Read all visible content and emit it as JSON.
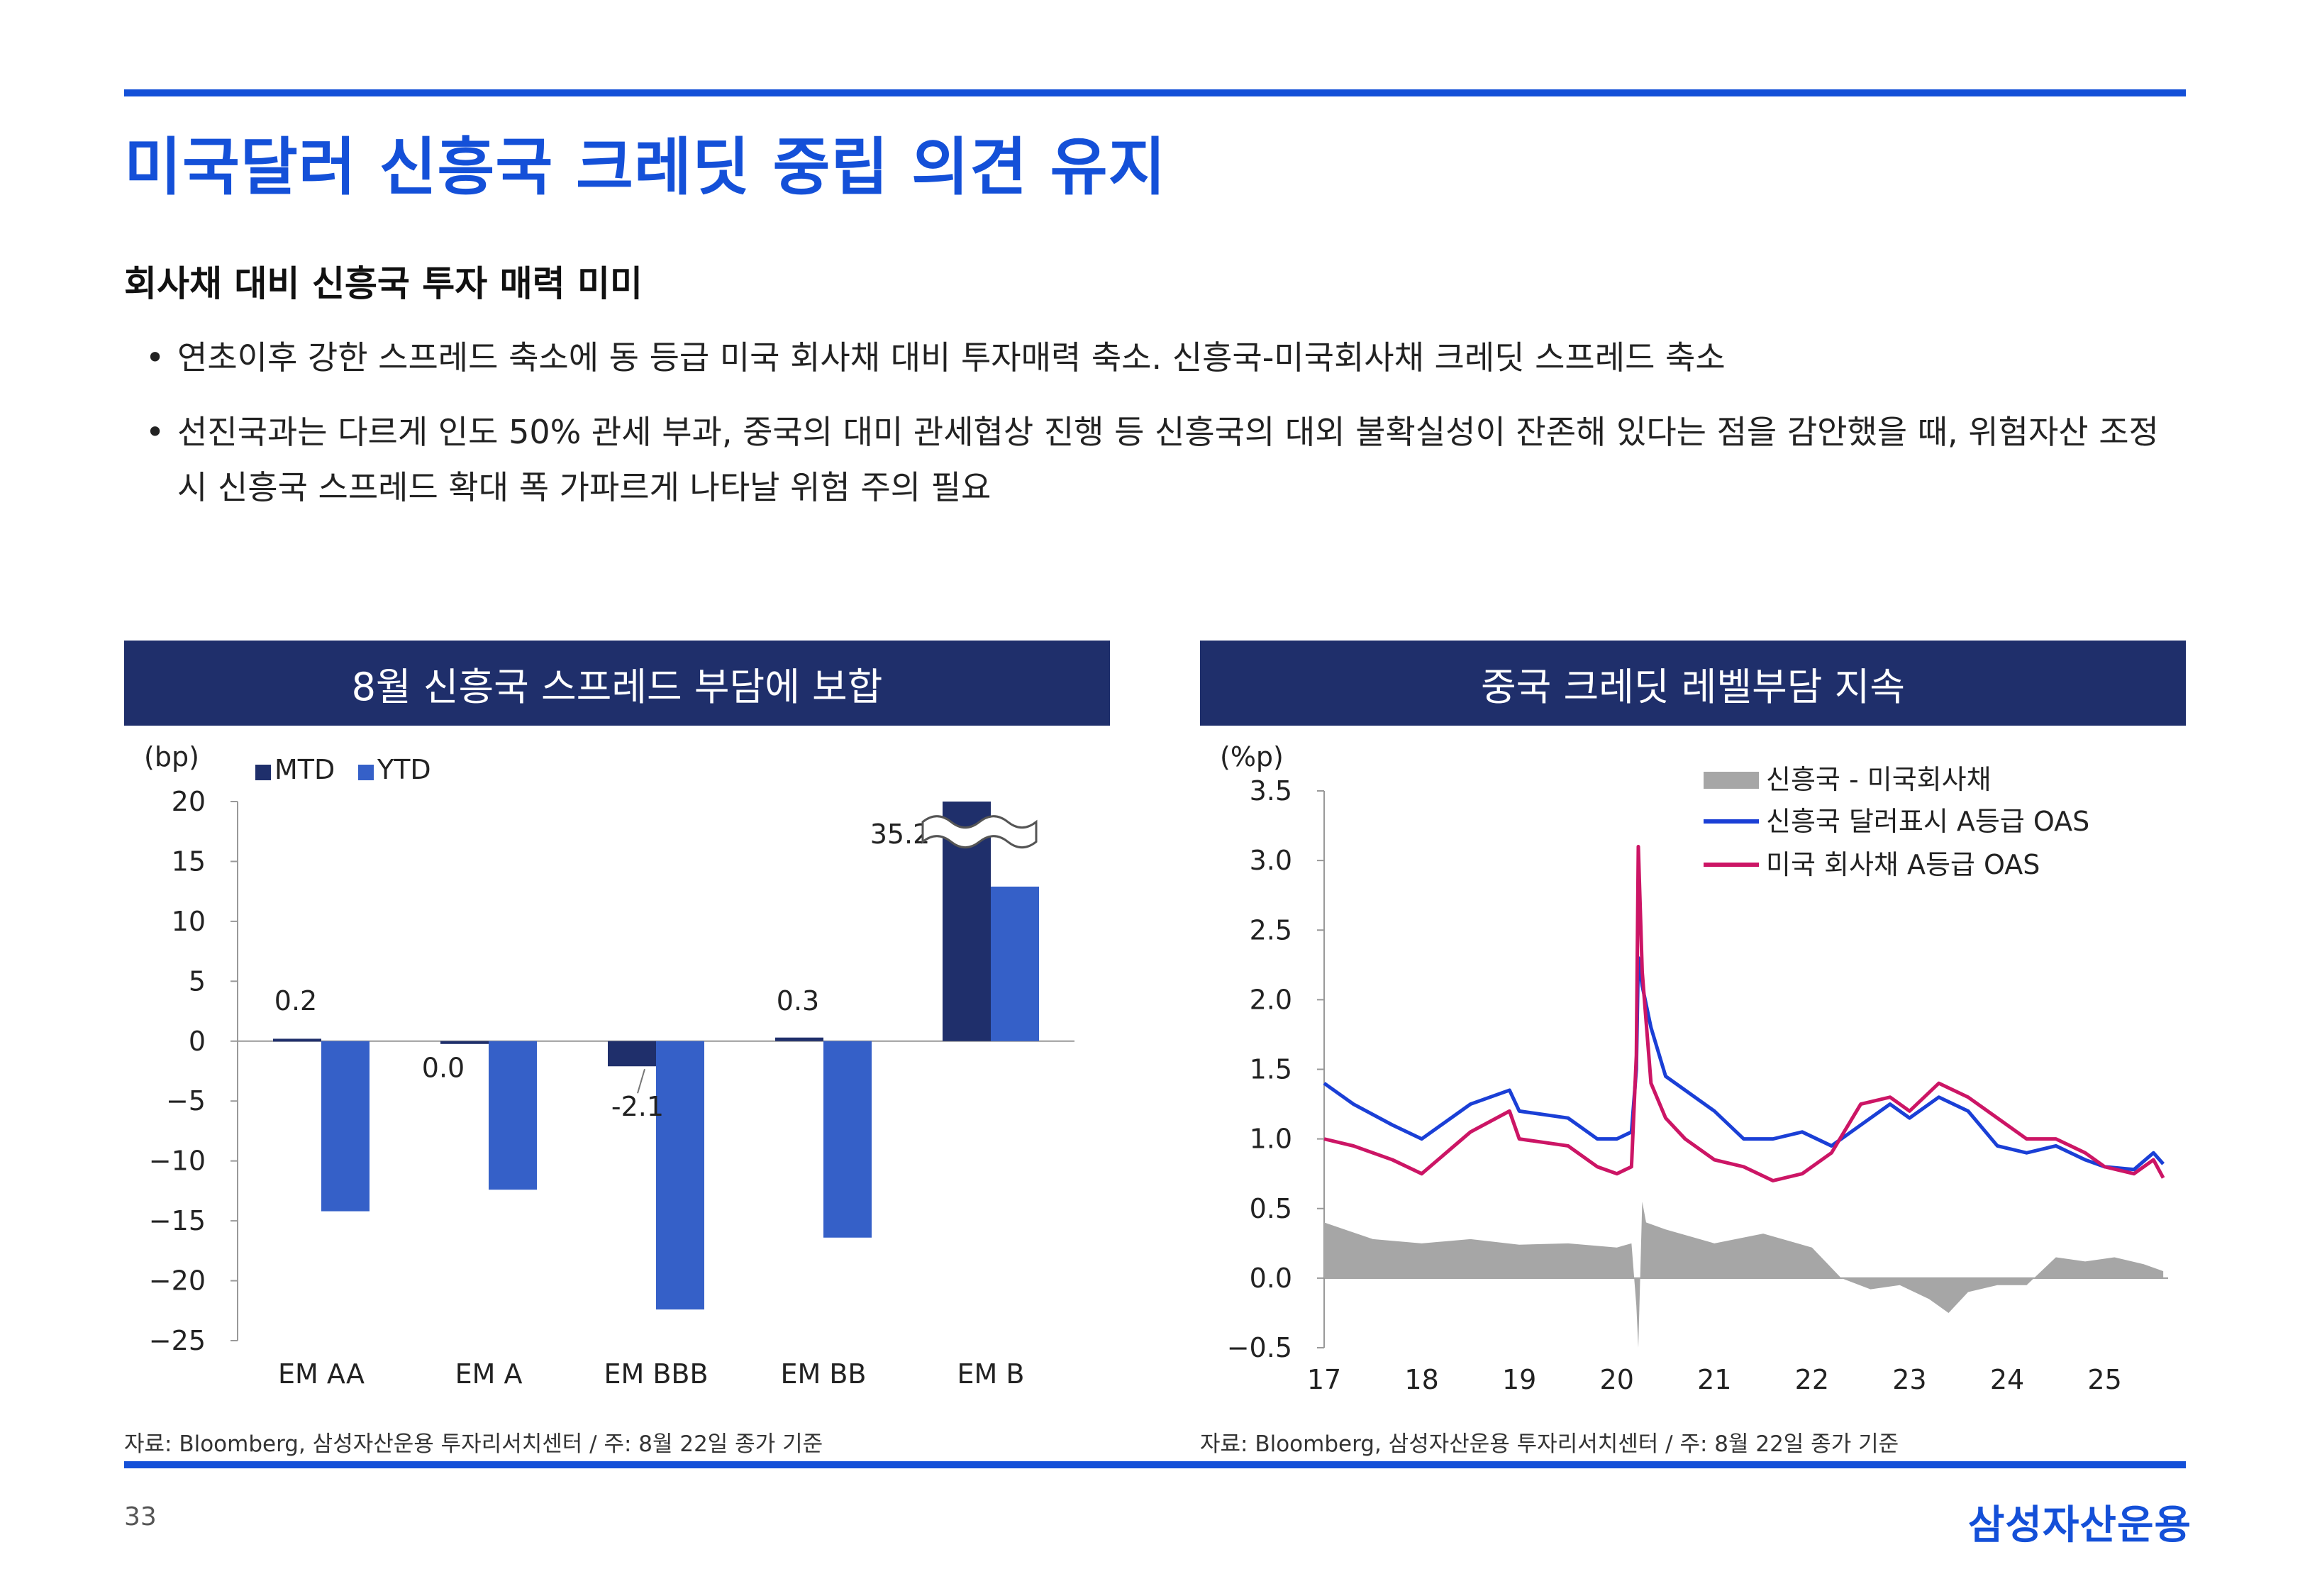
{
  "page": {
    "title": "미국달러 신흥국 크레딧 중립 의견 유지",
    "subtitle": "회사채 대비 신흥국 투자 매력 미미",
    "bullets": [
      "연초이후 강한 스프레드 축소에 동 등급 미국  회사채 대비 투자매력 축소. 신흥국-미국회사채 크레딧 스프레드 축소",
      "선진국과는 다르게 인도 50% 관세 부과, 중국의 대미 관세협상 진행 등 신흥국의 대외 불확실성이 잔존해 있다는 점을 감안했을 때, 위험자산 조정 시 신흥국 스프레드 확대 폭 가파르게 나타날 위험 주의 필요"
    ],
    "page_number": "33",
    "brand": "삼성자산운용"
  },
  "left_panel": {
    "header": "8월 신흥국 스프레드 부담에 보합",
    "source": "자료: Bloomberg, 삼성자산운용 투자리서치센터 / 주: 8월 22일 종가 기준"
  },
  "right_panel": {
    "header": "중국 크레딧 레벨부담 지속",
    "source": "자료: Bloomberg, 삼성자산운용 투자리서치센터 / 주: 8월 22일 종가 기준"
  },
  "colors": {
    "title_blue": "#1450d8",
    "header_navy": "#1f2f6b",
    "mtd": "#1f2f6b",
    "ytd": "#3560c8",
    "em_oas": "#1a3fd6",
    "us_oas": "#cc1565",
    "spread_area": "#a6a6a6"
  },
  "chart_data": [
    {
      "type": "bar",
      "ylabel": "(bp)",
      "ylim": [
        -25,
        20
      ],
      "yticks": [
        20,
        15,
        10,
        5,
        0,
        -5,
        -10,
        -15,
        -20,
        -25
      ],
      "ytick_labels": [
        "20",
        "15",
        "10",
        "5",
        "0",
        "−5",
        "−10",
        "−15",
        "−20",
        "−25"
      ],
      "categories": [
        "EM AA",
        "EM A",
        "EM BBB",
        "EM BB",
        "EM B"
      ],
      "series": [
        {
          "name": "MTD",
          "values": [
            0.2,
            0.0,
            -2.1,
            0.3,
            35.2
          ]
        },
        {
          "name": "YTD",
          "values": [
            -14.2,
            -12.4,
            -22.4,
            -16.4,
            12.9
          ]
        }
      ],
      "data_labels": [
        "0.2",
        "0.0",
        "-2.1",
        "0.3",
        "35.2"
      ],
      "axis_break": "EM B MTD bar truncated at 20 (actual 35.2)"
    },
    {
      "type": "line",
      "ylabel": "(%p)",
      "ylim": [
        -0.5,
        3.5
      ],
      "yticks": [
        3.5,
        3.0,
        2.5,
        2.0,
        1.5,
        1.0,
        0.5,
        0.0,
        -0.5
      ],
      "ytick_labels": [
        "3.5",
        "3.0",
        "2.5",
        "2.0",
        "1.5",
        "1.0",
        "0.5",
        "0.0",
        "−0.5"
      ],
      "xlim": [
        2017.0,
        2025.65
      ],
      "xticks": [
        2017,
        2018,
        2019,
        2020,
        2021,
        2022,
        2023,
        2024,
        2025
      ],
      "xtick_labels": [
        "17",
        "18",
        "19",
        "20",
        "21",
        "22",
        "23",
        "24",
        "25"
      ],
      "series": [
        {
          "name": "신흥국 - 미국회사채",
          "kind": "area",
          "x": [
            2017.0,
            2017.5,
            2018.0,
            2018.5,
            2019.0,
            2019.5,
            2020.0,
            2020.15,
            2020.2,
            2020.22,
            2020.26,
            2020.3,
            2020.5,
            2021.0,
            2021.5,
            2022.0,
            2022.3,
            2022.6,
            2022.9,
            2023.2,
            2023.4,
            2023.6,
            2023.9,
            2024.2,
            2024.5,
            2024.8,
            2025.1,
            2025.4,
            2025.6
          ],
          "y": [
            0.4,
            0.28,
            0.25,
            0.28,
            0.24,
            0.25,
            0.22,
            0.25,
            -0.2,
            -0.5,
            0.55,
            0.4,
            0.35,
            0.25,
            0.32,
            0.22,
            0.0,
            -0.08,
            -0.05,
            -0.15,
            -0.25,
            -0.1,
            -0.05,
            -0.05,
            0.15,
            0.12,
            0.15,
            0.1,
            0.05
          ]
        },
        {
          "name": "신흥국 달러표시 A등급 OAS",
          "kind": "line",
          "x": [
            2017.0,
            2017.3,
            2017.7,
            2018.0,
            2018.5,
            2018.9,
            2019.0,
            2019.5,
            2019.8,
            2020.0,
            2020.15,
            2020.2,
            2020.22,
            2020.26,
            2020.35,
            2020.5,
            2020.7,
            2021.0,
            2021.3,
            2021.6,
            2021.9,
            2022.2,
            2022.5,
            2022.8,
            2023.0,
            2023.3,
            2023.6,
            2023.9,
            2024.2,
            2024.5,
            2024.8,
            2025.0,
            2025.3,
            2025.5,
            2025.6
          ],
          "y": [
            1.4,
            1.25,
            1.1,
            1.0,
            1.25,
            1.35,
            1.2,
            1.15,
            1.0,
            1.0,
            1.05,
            1.5,
            2.3,
            2.1,
            1.8,
            1.45,
            1.35,
            1.2,
            1.0,
            1.0,
            1.05,
            0.95,
            1.1,
            1.25,
            1.15,
            1.3,
            1.2,
            0.95,
            0.9,
            0.95,
            0.85,
            0.8,
            0.78,
            0.9,
            0.82
          ]
        },
        {
          "name": "미국 회사채 A등급 OAS",
          "kind": "line",
          "x": [
            2017.0,
            2017.3,
            2017.7,
            2018.0,
            2018.5,
            2018.9,
            2019.0,
            2019.5,
            2019.8,
            2020.0,
            2020.15,
            2020.2,
            2020.22,
            2020.26,
            2020.35,
            2020.5,
            2020.7,
            2021.0,
            2021.3,
            2021.6,
            2021.9,
            2022.2,
            2022.5,
            2022.8,
            2023.0,
            2023.3,
            2023.6,
            2023.9,
            2024.2,
            2024.5,
            2024.8,
            2025.0,
            2025.3,
            2025.5,
            2025.6
          ],
          "y": [
            1.0,
            0.95,
            0.85,
            0.75,
            1.05,
            1.2,
            1.0,
            0.95,
            0.8,
            0.75,
            0.8,
            1.6,
            3.1,
            2.2,
            1.4,
            1.15,
            1.0,
            0.85,
            0.8,
            0.7,
            0.75,
            0.9,
            1.25,
            1.3,
            1.2,
            1.4,
            1.3,
            1.15,
            1.0,
            1.0,
            0.9,
            0.8,
            0.75,
            0.85,
            0.72
          ]
        }
      ]
    }
  ]
}
